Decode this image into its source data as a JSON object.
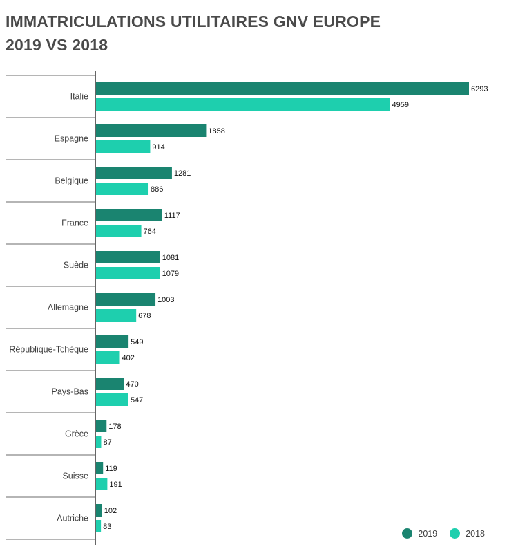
{
  "chart_data": {
    "type": "bar",
    "orientation": "horizontal",
    "title_lines": [
      "IMMATRICULATIONS UTILITAIRES GNV EUROPE",
      "2019 VS 2018"
    ],
    "categories": [
      "Italie",
      "Espagne",
      "Belgique",
      "France",
      "Suède",
      "Allemagne",
      "République-Tchèque",
      "Pays-Bas",
      "Grèce",
      "Suisse",
      "Autriche"
    ],
    "series": [
      {
        "name": "2019",
        "color": "#1a8470",
        "values": [
          6293,
          1858,
          1281,
          1117,
          1081,
          1003,
          549,
          470,
          178,
          119,
          102
        ]
      },
      {
        "name": "2018",
        "color": "#1ecfae",
        "values": [
          4959,
          914,
          886,
          764,
          1079,
          678,
          402,
          547,
          87,
          191,
          83
        ]
      }
    ],
    "xlim": [
      0,
      6293
    ],
    "grid": false,
    "legend_position": "bottom-right",
    "data_labels": true
  }
}
